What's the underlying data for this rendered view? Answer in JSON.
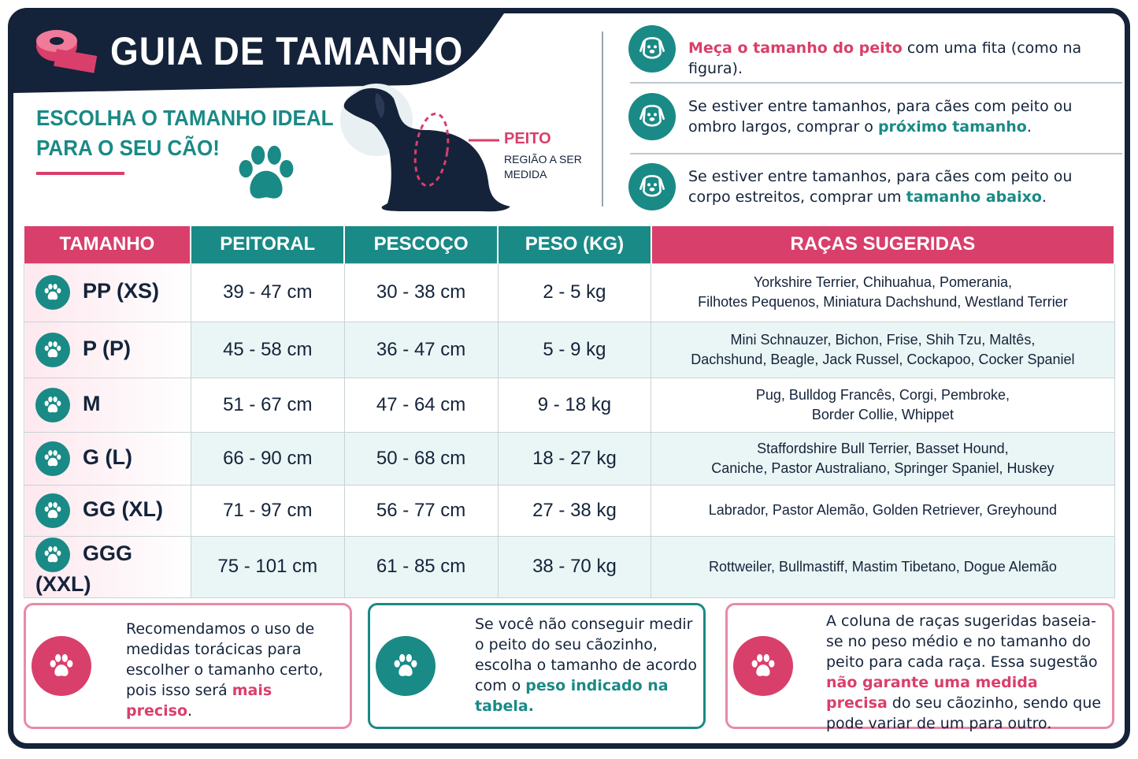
{
  "header": {
    "title": "GUIA DE TAMANHO",
    "subtitle_lines": [
      "ESCOLHA O TAMANHO IDEAL",
      "PARA O SEU CÃO!"
    ]
  },
  "figure": {
    "label": "PEITO",
    "caption_lines": [
      "REGIÃO A SER",
      "MEDIDA"
    ]
  },
  "instructions": [
    {
      "parts": [
        {
          "text": "Meça o tamanho do peito",
          "color": "#d93f6b"
        },
        {
          "text": " com uma fita (como na figura)."
        }
      ]
    },
    {
      "parts": [
        {
          "text": "Se estiver entre tamanhos, para cães com peito ou ombro largos, comprar o "
        },
        {
          "text": "próximo tamanho",
          "color": "#1a8a86"
        },
        {
          "text": "."
        }
      ]
    },
    {
      "parts": [
        {
          "text": "Se estiver entre tamanhos, para cães com peito ou corpo estreitos, comprar um "
        },
        {
          "text": "tamanho abaixo",
          "color": "#1a8a86"
        },
        {
          "text": "."
        }
      ]
    }
  ],
  "table": {
    "headers": [
      "TAMANHO",
      "PEITORAL",
      "PESCOÇO",
      "PESO (KG)",
      "RAÇAS SUGERIDAS"
    ],
    "rows": [
      {
        "size": "PP (XS)",
        "chest": "39 - 47 cm",
        "neck": "30 - 38 cm",
        "weight": "2 - 5 kg",
        "breeds": [
          "Yorkshire Terrier, Chihuahua, Pomerania,",
          "Filhotes Pequenos, Miniatura Dachshund, Westland Terrier"
        ]
      },
      {
        "size": "P (P)",
        "chest": "45 - 58 cm",
        "neck": "36 - 47 cm",
        "weight": "5 - 9 kg",
        "breeds": [
          "Mini Schnauzer, Bichon, Frise, Shih Tzu, Maltês,",
          "Dachshund, Beagle, Jack Russel, Cockapoo, Cocker Spaniel"
        ]
      },
      {
        "size": "M",
        "chest": "51 - 67 cm",
        "neck": "47 - 64 cm",
        "weight": "9 - 18 kg",
        "breeds": [
          "Pug, Bulldog Francês, Corgi, Pembroke,",
          "Border Collie, Whippet"
        ]
      },
      {
        "size": "G (L)",
        "chest": "66 - 90 cm",
        "neck": "50 - 68 cm",
        "weight": "18 - 27 kg",
        "breeds": [
          "Staffordshire Bull Terrier, Basset Hound,",
          "Caniche, Pastor Australiano, Springer Spaniel, Huskey"
        ]
      },
      {
        "size": "GG (XL)",
        "chest": "71 - 97 cm",
        "neck": "56 - 77 cm",
        "weight": "27 - 38 kg",
        "breeds": [
          "Labrador, Pastor Alemão, Golden Retriever, Greyhound"
        ]
      },
      {
        "size": "GGG (XXL)",
        "chest": "75 - 101 cm",
        "neck": "61 - 85 cm",
        "weight": "38 - 70 kg",
        "breeds": [
          "Rottweiler, Bullmastiff, Mastim Tibetano, Dogue Alemão"
        ]
      }
    ]
  },
  "notes": [
    {
      "parts": [
        {
          "text": "Recomendamos o uso de medidas torácicas para escolher o tamanho certo, pois isso será "
        },
        {
          "text": "mais preciso",
          "color": "#d93f6b"
        },
        {
          "text": "."
        }
      ]
    },
    {
      "parts": [
        {
          "text": "Se você não conseguir medir o peito do seu cãozinho, escolha o tamanho de acordo com o "
        },
        {
          "text": "peso indicado na tabela.",
          "color": "#1a8a86"
        }
      ]
    },
    {
      "parts": [
        {
          "text": "A coluna de raças sugeridas baseia-se no peso médio e no tamanho do peito para cada raça. Essa sugestão "
        },
        {
          "text": "não garante uma medida precisa",
          "color": "#d93f6b"
        },
        {
          "text": " do seu cãozinho, sendo que pode variar de um para outro."
        }
      ]
    }
  ]
}
